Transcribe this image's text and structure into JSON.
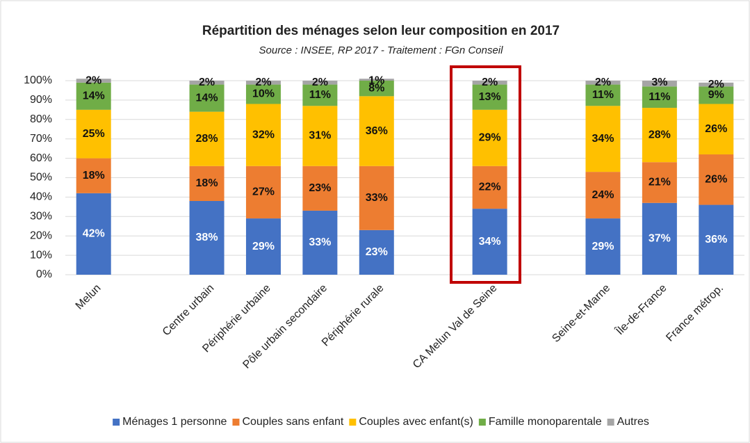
{
  "chart_data": {
    "type": "stacked_bar",
    "title": "Répartition des ménages selon leur composition en 2017",
    "subtitle": "Source : INSEE, RP 2017 - Traitement : FGn Conseil",
    "categories": [
      "Melun",
      null,
      "Centre urbain",
      "Périphérie urbaine",
      "Pôle urbain secondaire",
      "Périphérie rurale",
      null,
      "CA Melun Val de Seine",
      null,
      "Seine-et-Marne",
      "Île-de-France",
      "France métrop."
    ],
    "series": [
      {
        "name": "Ménages 1 personne",
        "color": "#4472c4",
        "values": [
          42,
          null,
          38,
          29,
          33,
          23,
          null,
          34,
          null,
          29,
          37,
          36
        ],
        "value_labels": [
          "42%",
          null,
          "38%",
          "29%",
          "33%",
          "23%",
          null,
          "34%",
          null,
          "29%",
          "37%",
          "36%"
        ]
      },
      {
        "name": "Couples sans enfant",
        "color": "#ed7d31",
        "values": [
          18,
          null,
          18,
          27,
          23,
          33,
          null,
          22,
          null,
          24,
          21,
          26
        ],
        "value_labels": [
          "18%",
          null,
          "18%",
          "27%",
          "23%",
          "33%",
          null,
          "22%",
          null,
          "24%",
          "21%",
          "26%"
        ]
      },
      {
        "name": "Couples avec enfant(s)",
        "color": "#ffc000",
        "values": [
          25,
          null,
          28,
          32,
          31,
          36,
          null,
          29,
          null,
          34,
          28,
          26
        ],
        "value_labels": [
          "25%",
          null,
          "28%",
          "32%",
          "31%",
          "36%",
          null,
          "29%",
          null,
          "34%",
          "28%",
          "26%"
        ]
      },
      {
        "name": "Famille monoparentale",
        "color": "#70ad47",
        "values": [
          14,
          null,
          14,
          10,
          11,
          8,
          null,
          13,
          null,
          11,
          11,
          9
        ],
        "value_labels": [
          "14%",
          null,
          "14%",
          "10%",
          "11%",
          "8%",
          null,
          "13%",
          null,
          "11%",
          "11%",
          "9%"
        ]
      },
      {
        "name": "Autres",
        "color": "#a5a5a5",
        "values": [
          2,
          null,
          2,
          2,
          2,
          1,
          null,
          2,
          null,
          2,
          3,
          2
        ],
        "value_labels": [
          "2%",
          null,
          "2%",
          "2%",
          "2%",
          "1%",
          null,
          "2%",
          null,
          "2%",
          "3%",
          "2%"
        ]
      }
    ],
    "ylim": [
      0,
      100
    ],
    "yticks": [
      {
        "value": 0,
        "label": "0%"
      },
      {
        "value": 10,
        "label": "10%"
      },
      {
        "value": 20,
        "label": "20%"
      },
      {
        "value": 30,
        "label": "30%"
      },
      {
        "value": 40,
        "label": "40%"
      },
      {
        "value": 50,
        "label": "50%"
      },
      {
        "value": 60,
        "label": "60%"
      },
      {
        "value": 70,
        "label": "70%"
      },
      {
        "value": 80,
        "label": "80%"
      },
      {
        "value": 90,
        "label": "90%"
      },
      {
        "value": 100,
        "label": "100%"
      }
    ],
    "grid": true,
    "legend": "bottom"
  }
}
